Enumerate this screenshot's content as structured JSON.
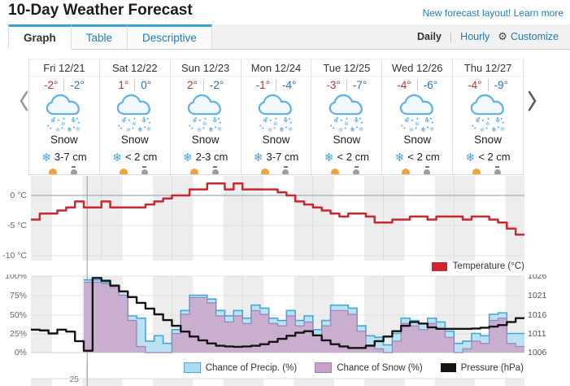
{
  "header": {
    "title": "10-Day Weather Forecast",
    "promo_link": "New forecast layout! Learn more"
  },
  "tabs": [
    {
      "label": "Graph",
      "active": true
    },
    {
      "label": "Table",
      "active": false
    },
    {
      "label": "Descriptive",
      "active": false
    }
  ],
  "view_toggle": {
    "daily": "Daily",
    "hourly": "Hourly",
    "customize": "Customize"
  },
  "icons": {
    "gear": "⚙",
    "snowflake": "❄",
    "condition_icon": "snow-cloud"
  },
  "forecast": {
    "days": [
      {
        "date": "Fri 12/21",
        "high": "-2°",
        "low": "-2°",
        "condition": "Snow",
        "accumulation": "3-7 cm"
      },
      {
        "date": "Sat 12/22",
        "high": "1°",
        "low": "0°",
        "condition": "Snow",
        "accumulation": "< 2 cm"
      },
      {
        "date": "Sun 12/23",
        "high": "2°",
        "low": "-2°",
        "condition": "Snow",
        "accumulation": "2-3 cm"
      },
      {
        "date": "Mon 12/24",
        "high": "-1°",
        "low": "-4°",
        "condition": "Snow",
        "accumulation": "3-7 cm"
      },
      {
        "date": "Tue 12/25",
        "high": "-3°",
        "low": "-7°",
        "condition": "Snow",
        "accumulation": "< 2 cm"
      },
      {
        "date": "Wed 12/26",
        "high": "-4°",
        "low": "-6°",
        "condition": "Snow",
        "accumulation": "< 2 cm"
      },
      {
        "date": "Thu 12/27",
        "high": "-4°",
        "low": "-9°",
        "condition": "Snow",
        "accumulation": "< 2 cm"
      }
    ]
  },
  "legends": {
    "temperature": "Temperature (°C)",
    "precip": "Chance of Precip. (%)",
    "snow": "Chance of Snow (%)",
    "pressure": "Pressure (hPa)"
  },
  "axes": {
    "temp_ticks": [
      "0 °C",
      "-5 °C",
      "-10 °C"
    ],
    "pct_ticks": [
      "100%",
      "75%",
      "50%",
      "25%",
      "0%"
    ],
    "hpa_ticks": [
      "1026",
      "1021",
      "1016",
      "1011",
      "1006"
    ],
    "strip_tick": "25"
  },
  "colors": {
    "accent_blue": "#35a3d9",
    "link_blue": "#1d7db5",
    "temp_line": "#cc2630",
    "precip_fill": "#b9e3f3",
    "precip_stroke": "#44a6d6",
    "snow_fill": "#cda2c7",
    "snow_stroke": "#8f87bd",
    "pressure_line": "#141414",
    "zero_line_blue": "#8fb2d4",
    "high_temp_red": "#bf3330",
    "low_temp_blue": "#2f6fb2",
    "night_band": "#ededed"
  },
  "chart_data": [
    {
      "type": "line",
      "title": "Temperature (°C)",
      "categories": [
        "Fri 12/21",
        "Sat 12/22",
        "Sun 12/23",
        "Mon 12/24",
        "Tue 12/25",
        "Wed 12/26",
        "Thu 12/27"
      ],
      "sample_interval_hours": 3,
      "ylabel": "°C",
      "ylim": [
        -10.8,
        3.2
      ],
      "yticks": [
        0,
        -5,
        -10
      ],
      "grid": true,
      "night_shading": true,
      "daylight_band_fraction": [
        0.3,
        0.73
      ],
      "current_time_fraction": 0.114,
      "series": [
        {
          "name": "Temperature (°C)",
          "values": [
            -4,
            -3,
            -3,
            -2.5,
            -2,
            -1,
            -2,
            -2,
            -1,
            -2,
            -2,
            -2,
            -2,
            -1.5,
            -1,
            -0.5,
            0,
            0,
            1,
            1,
            2,
            2,
            1,
            2,
            1,
            1,
            1,
            1,
            0.5,
            0,
            -1,
            -1.5,
            -2,
            -2.5,
            -3,
            -3.5,
            -3,
            -3,
            -3.5,
            -4.5,
            -4.5,
            -4,
            -4,
            -3.5,
            -3.5,
            -4,
            -3.5,
            -3.5,
            -3.5,
            -4,
            -3.5,
            -3.5,
            -4,
            -4.5,
            -5.5,
            -6.5
          ]
        }
      ],
      "legend_position": "bottom-right"
    },
    {
      "type": "area",
      "categories": [
        "Fri 12/21",
        "Sat 12/22",
        "Sun 12/23",
        "Mon 12/24",
        "Tue 12/25",
        "Wed 12/26",
        "Thu 12/27"
      ],
      "sample_interval_hours": 3,
      "ylim_left": [
        0,
        100
      ],
      "yticks_left": [
        100,
        75,
        50,
        25,
        0
      ],
      "ylim_right": [
        1006,
        1026
      ],
      "yticks_right": [
        1026,
        1021,
        1016,
        1011,
        1006
      ],
      "grid": true,
      "night_shading": true,
      "current_time_fraction": 0.114,
      "series": [
        {
          "name": "Chance of Precip. (%)",
          "axis": "left",
          "kind": "area",
          "values": [
            0,
            0,
            0,
            0,
            0,
            0,
            95,
            95,
            92,
            88,
            80,
            48,
            45,
            15,
            22,
            12,
            30,
            55,
            75,
            75,
            70,
            55,
            48,
            55,
            45,
            62,
            58,
            45,
            42,
            55,
            42,
            48,
            30,
            42,
            62,
            62,
            58,
            35,
            22,
            20,
            10,
            25,
            45,
            42,
            38,
            45,
            40,
            28,
            12,
            15,
            25,
            22,
            50,
            52,
            25,
            25
          ]
        },
        {
          "name": "Chance of Snow (%)",
          "axis": "left",
          "kind": "area",
          "values": [
            0,
            0,
            0,
            0,
            0,
            0,
            92,
            92,
            90,
            85,
            75,
            42,
            8,
            0,
            0,
            0,
            25,
            50,
            72,
            72,
            65,
            48,
            40,
            48,
            38,
            55,
            50,
            38,
            35,
            48,
            35,
            40,
            22,
            35,
            55,
            55,
            50,
            28,
            10,
            5,
            0,
            15,
            38,
            35,
            30,
            38,
            32,
            20,
            0,
            5,
            15,
            12,
            42,
            45,
            12,
            8
          ]
        },
        {
          "name": "Pressure (hPa)",
          "axis": "right",
          "kind": "line",
          "values": [
            1012,
            1011.8,
            1011,
            1012,
            1011.5,
            1009,
            1006.5,
            1025.5,
            1024.8,
            1023.5,
            1022,
            1020.5,
            1019,
            1017.5,
            1016,
            1014.5,
            1013,
            1011.5,
            1010.2,
            1009.2,
            1008.4,
            1007.8,
            1007.6,
            1007.5,
            1007.6,
            1007.8,
            1008.2,
            1008.8,
            1009.6,
            1010.4,
            1011.2,
            1011.6,
            1010.5,
            1009.2,
            1008.2,
            1007.6,
            1007.2,
            1007.2,
            1007.8,
            1009,
            1010.2,
            1011.6,
            1013,
            1014,
            1013.6,
            1012.6,
            1012.2,
            1012.2,
            1012.2,
            1012.2,
            1012.3,
            1012.5,
            1012.8,
            1013.2,
            1014,
            1015
          ]
        }
      ],
      "legend_position": "bottom-right"
    },
    {
      "type": "partial",
      "note_visible_tick": "25"
    }
  ]
}
